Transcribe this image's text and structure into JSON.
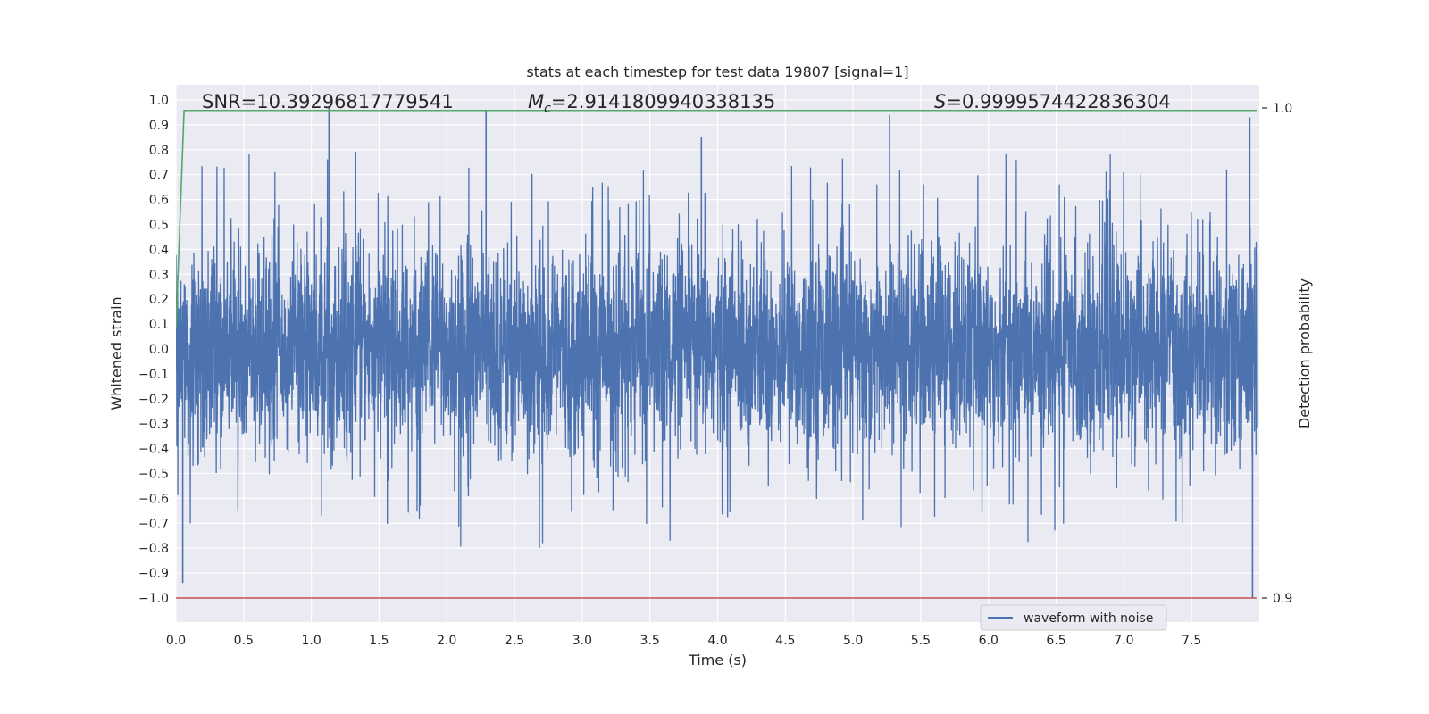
{
  "chart_data": {
    "type": "line",
    "title": "stats at each timestep for test data 19807 [signal=1]",
    "xlabel": "Time (s)",
    "ylabel": "Whitened strain",
    "y2label": "Detection probability",
    "xlim": [
      0.0,
      8.0
    ],
    "ylim": [
      -1.1,
      1.05
    ],
    "y2lim": [
      0.9,
      1.0
    ],
    "xticks": [
      "0.0",
      "0.5",
      "1.0",
      "1.5",
      "2.0",
      "2.5",
      "3.0",
      "3.5",
      "4.0",
      "4.5",
      "5.0",
      "5.5",
      "6.0",
      "6.5",
      "7.0",
      "7.5"
    ],
    "yticks": [
      "1.0",
      "0.9",
      "0.8",
      "0.7",
      "0.6",
      "0.5",
      "0.4",
      "0.3",
      "0.2",
      "0.1",
      "0.0",
      "−0.1",
      "−0.2",
      "−0.3",
      "−0.4",
      "−0.5",
      "−0.6",
      "−0.7",
      "−0.8",
      "−0.9",
      "−1.0"
    ],
    "y2ticks": [
      "1.0",
      "0.9"
    ],
    "annotations": {
      "snr": "SNR=10.39296817779541",
      "mc_symbol": "M",
      "mc_sub": "c",
      "mc_value": "=2.9141809940338135",
      "s_symbol": "S",
      "s_value": "=0.9999574422836304"
    },
    "grid": true,
    "legend": {
      "position": "bottom-right",
      "entries": [
        "waveform with noise"
      ]
    },
    "series": [
      {
        "name": "waveform with noise",
        "color": "#4c72b0",
        "axis": "left",
        "kind": "noise",
        "x_range": [
          0.0,
          7.98
        ],
        "envelope": [
          -1.0,
          0.97
        ],
        "peaks": [
          {
            "x": 0.05,
            "y": -0.94
          },
          {
            "x": 1.13,
            "y": 0.97
          },
          {
            "x": 2.29,
            "y": 0.96
          },
          {
            "x": 3.88,
            "y": 0.85
          },
          {
            "x": 5.27,
            "y": 0.94
          },
          {
            "x": 7.93,
            "y": 0.93
          },
          {
            "x": 7.95,
            "y": -1.0
          }
        ]
      },
      {
        "name": "",
        "color": "#55a868",
        "axis": "right",
        "x": [
          0.0,
          0.06,
          7.98
        ],
        "y": [
          0.955,
          0.9995,
          0.9995
        ]
      },
      {
        "name": "",
        "color": "#c44e52",
        "axis": "right",
        "x": [
          0.0,
          7.98
        ],
        "y": [
          0.9,
          0.9
        ]
      }
    ]
  }
}
